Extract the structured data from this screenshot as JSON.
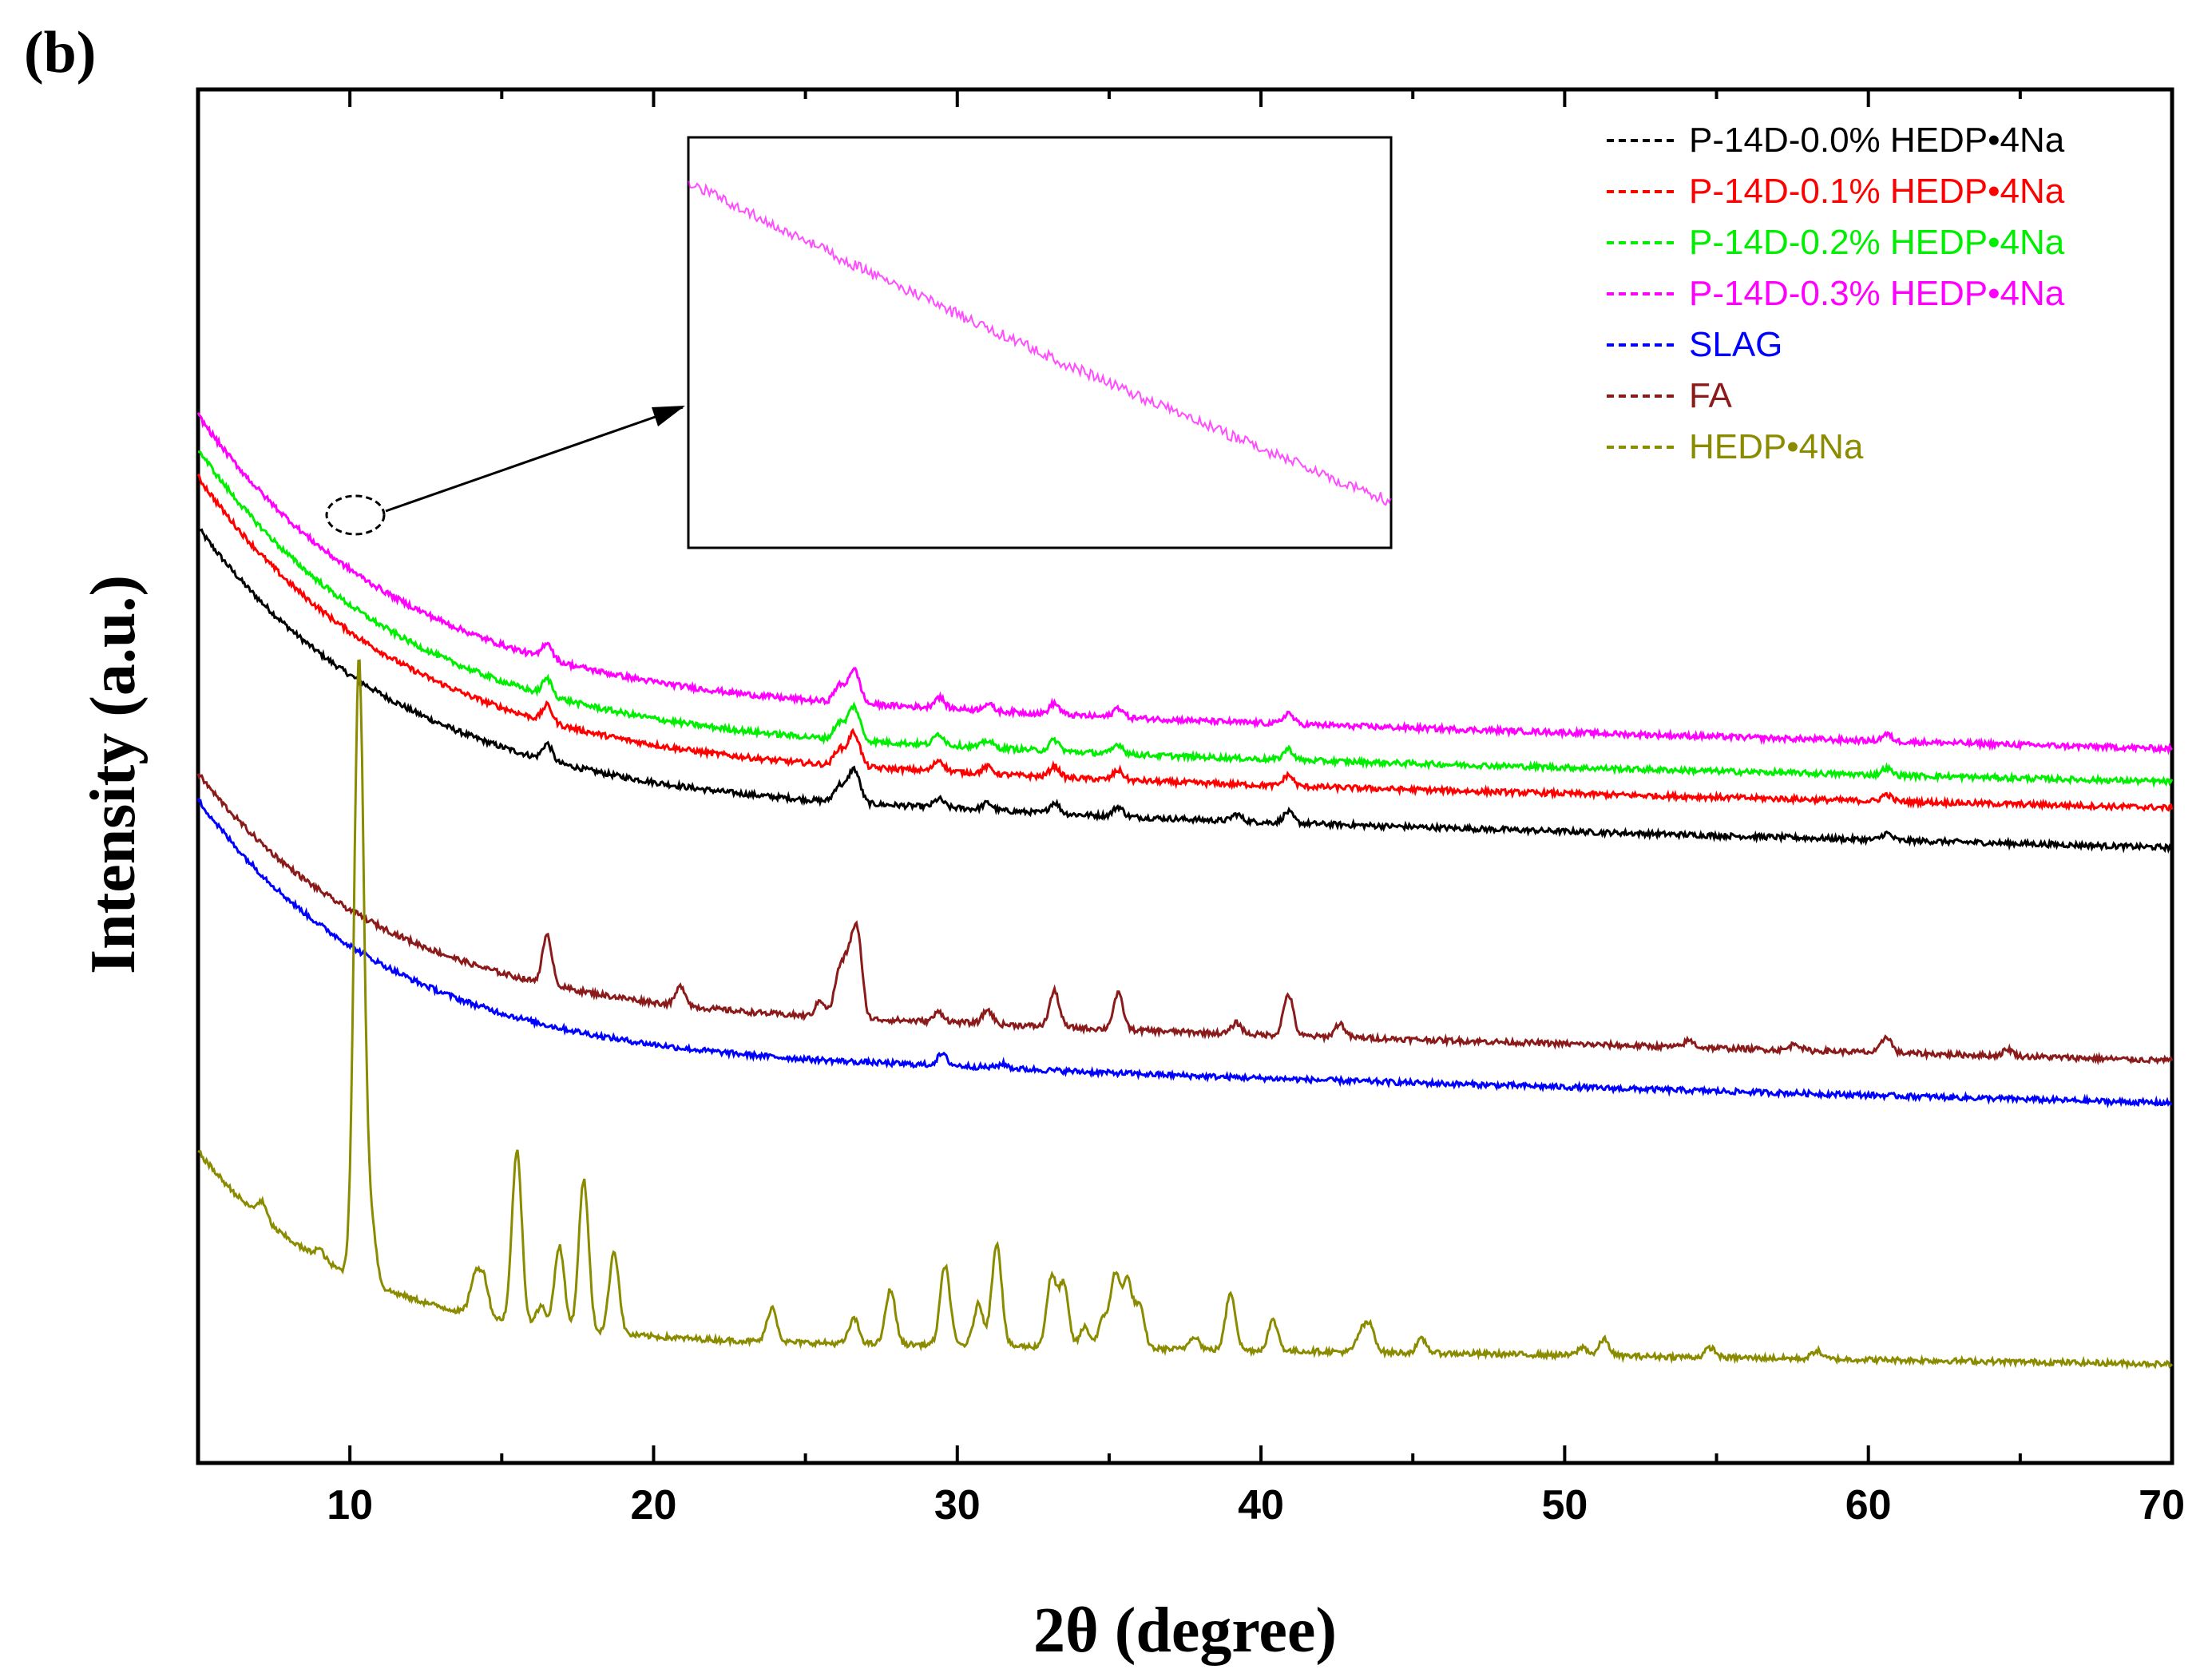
{
  "panel_label": "(b)",
  "chart_data": {
    "type": "line",
    "title": "",
    "xlabel": "2θ (degree)",
    "ylabel": "Intensity (a.u.)",
    "xlim": [
      5,
      70
    ],
    "ylim": [
      0,
      1
    ],
    "x_ticks": [
      10,
      20,
      30,
      40,
      50,
      60,
      70
    ],
    "grid": false,
    "legend_position": "top-right",
    "series": [
      {
        "name": "P-14D-0.0% HEDP•4Na",
        "color": "#000000",
        "style": "dashed",
        "background": {
          "start": 0.681,
          "end": 0.448,
          "plateau": 0.471,
          "scale": 7
        },
        "peaks": [
          [
            16.5,
            0.012
          ],
          [
            26.1,
            0.012
          ],
          [
            26.5,
            0.016
          ],
          [
            26.7,
            0.014
          ],
          [
            29.4,
            0.006
          ],
          [
            31,
            0.005
          ],
          [
            33.2,
            0.008
          ],
          [
            35.3,
            0.007
          ],
          [
            39.2,
            0.005
          ],
          [
            40.9,
            0.008
          ],
          [
            60.6,
            0.005
          ]
        ]
      },
      {
        "name": "P-14D-0.1% HEDP•4Na",
        "color": "#ff0000",
        "style": "dashed",
        "background": {
          "start": 0.718,
          "end": 0.477,
          "plateau": 0.497,
          "scale": 7
        },
        "peaks": [
          [
            16.5,
            0.012
          ],
          [
            26.1,
            0.012
          ],
          [
            26.5,
            0.016
          ],
          [
            26.7,
            0.014
          ],
          [
            29.4,
            0.008
          ],
          [
            31,
            0.005
          ],
          [
            33.2,
            0.008
          ],
          [
            35.3,
            0.007
          ],
          [
            40.9,
            0.008
          ],
          [
            60.6,
            0.005
          ]
        ]
      },
      {
        "name": "P-14D-0.2% HEDP•4Na",
        "color": "#00ee00",
        "style": "dashed",
        "background": {
          "start": 0.738,
          "end": 0.496,
          "plateau": 0.516,
          "scale": 7
        },
        "peaks": [
          [
            16.5,
            0.012
          ],
          [
            26.1,
            0.012
          ],
          [
            26.5,
            0.016
          ],
          [
            26.7,
            0.014
          ],
          [
            29.4,
            0.008
          ],
          [
            31,
            0.005
          ],
          [
            33.2,
            0.008
          ],
          [
            35.3,
            0.007
          ],
          [
            40.9,
            0.008
          ],
          [
            60.6,
            0.005
          ]
        ]
      },
      {
        "name": "P-14D-0.3% HEDP•4Na",
        "color": "#ff00ff",
        "style": "dashed",
        "background": {
          "start": 0.763,
          "end": 0.52,
          "plateau": 0.543,
          "scale": 7
        },
        "peaks": [
          [
            16.5,
            0.012
          ],
          [
            26.1,
            0.012
          ],
          [
            26.5,
            0.016
          ],
          [
            26.7,
            0.014
          ],
          [
            29.4,
            0.008
          ],
          [
            31,
            0.005
          ],
          [
            33.2,
            0.008
          ],
          [
            35.3,
            0.007
          ],
          [
            40.9,
            0.008
          ],
          [
            60.6,
            0.005
          ]
        ]
      },
      {
        "name": "SLAG",
        "color": "#0000ff",
        "style": "dashed",
        "background": {
          "start": 0.483,
          "end": 0.262,
          "plateau": 0.285,
          "scale": 6.5
        },
        "peaks": [
          [
            29.5,
            0.008
          ],
          [
            31.5,
            0.003
          ]
        ]
      },
      {
        "name": "FA",
        "color": "#8b1a1a",
        "style": "dashed",
        "background": {
          "start": 0.502,
          "end": 0.293,
          "plateau": 0.317,
          "scale": 6.5
        },
        "peaks": [
          [
            16.5,
            0.035
          ],
          [
            20.9,
            0.014
          ],
          [
            25.5,
            0.012
          ],
          [
            26.1,
            0.03
          ],
          [
            26.4,
            0.035
          ],
          [
            26.7,
            0.062
          ],
          [
            29.4,
            0.007
          ],
          [
            31.0,
            0.01
          ],
          [
            33.2,
            0.026
          ],
          [
            35.3,
            0.026
          ],
          [
            39.2,
            0.008
          ],
          [
            40.9,
            0.03
          ],
          [
            42.6,
            0.01
          ],
          [
            54.1,
            0.005
          ],
          [
            57.6,
            0.005
          ],
          [
            60.6,
            0.012
          ],
          [
            64.6,
            0.005
          ]
        ]
      },
      {
        "name": "HEDP•4Na",
        "color": "#8b8b00",
        "style": "dashed",
        "background": {
          "start": 0.227,
          "end": 0.072,
          "plateau": 0.085,
          "scale": 5
        },
        "peaks": [
          [
            7.1,
            0.012
          ],
          [
            9.0,
            0.007
          ],
          [
            10.3,
            0.45
          ],
          [
            10.7,
            0.045
          ],
          [
            14.1,
            0.025
          ],
          [
            14.4,
            0.028
          ],
          [
            15.5,
            0.125
          ],
          [
            16.3,
            0.014
          ],
          [
            16.9,
            0.06
          ],
          [
            17.7,
            0.11
          ],
          [
            18.7,
            0.06
          ],
          [
            23.9,
            0.025
          ],
          [
            26.6,
            0.018
          ],
          [
            27.8,
            0.04
          ],
          [
            29.6,
            0.058
          ],
          [
            30.7,
            0.03
          ],
          [
            31.3,
            0.075
          ],
          [
            33.1,
            0.05
          ],
          [
            33.5,
            0.045
          ],
          [
            34.2,
            0.015
          ],
          [
            34.8,
            0.02
          ],
          [
            35.2,
            0.052
          ],
          [
            35.6,
            0.048
          ],
          [
            36.0,
            0.03
          ],
          [
            37.8,
            0.01
          ],
          [
            39.0,
            0.042
          ],
          [
            40.4,
            0.022
          ],
          [
            43.3,
            0.014
          ],
          [
            43.6,
            0.018
          ],
          [
            45.3,
            0.01
          ],
          [
            50.6,
            0.006
          ],
          [
            51.3,
            0.012
          ],
          [
            54.8,
            0.007
          ],
          [
            58.3,
            0.006
          ]
        ]
      }
    ]
  }
}
